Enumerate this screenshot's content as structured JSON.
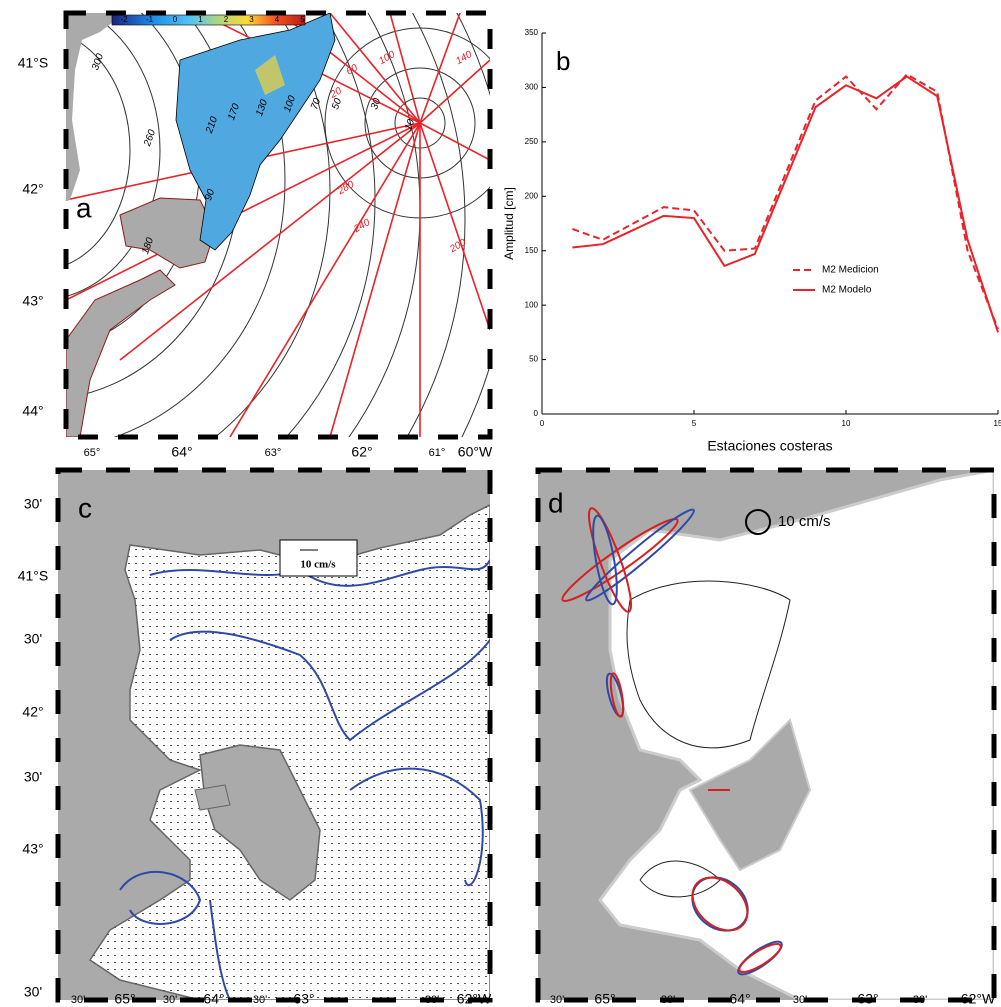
{
  "chart_data": {
    "type": "line",
    "panel_label": "b",
    "x_label": "Estaciones costeras",
    "y_label": "Amplitud [cm]",
    "x": [
      1,
      2,
      4,
      5,
      6,
      7,
      9,
      10,
      11,
      12,
      13,
      14,
      15
    ],
    "series": [
      {
        "name": "M2 Medicion",
        "color": "#e8232a",
        "dash": "dashed",
        "values": [
          170,
          160,
          190,
          187,
          150,
          152,
          288,
          310,
          280,
          312,
          296,
          150,
          78
        ]
      },
      {
        "name": "M2 Modelo",
        "color": "#e8232a",
        "dash": "solid",
        "values": [
          153,
          156,
          182,
          180,
          136,
          147,
          282,
          302,
          290,
          310,
          292,
          160,
          75
        ]
      }
    ],
    "xlim": [
      0,
      15
    ],
    "ylim": [
      0,
      350
    ],
    "xticks": [
      0,
      5,
      10,
      15
    ],
    "yticks": [
      0,
      50,
      100,
      150,
      200,
      250,
      300,
      350
    ],
    "legend": "center right"
  },
  "maps": [
    {
      "panel_label": "a",
      "lat_labels": [
        "41°S",
        "42°",
        "43°",
        "44°"
      ],
      "lon_labels": [
        "65°",
        "64°",
        "63°",
        "62°",
        "61°",
        "60°W"
      ],
      "colorbar_ticks": [
        -2,
        -1,
        0,
        1,
        2,
        3,
        4,
        5
      ],
      "contour_labels_black": [
        "300",
        "260",
        "210",
        "170",
        "130",
        "100",
        "70",
        "50",
        "30",
        "10",
        "180",
        "90"
      ],
      "contour_labels_red": [
        "100",
        "140",
        "60",
        "20",
        "280",
        "240",
        "200"
      ]
    },
    {
      "panel_label": "c",
      "lat_labels": [
        "30'",
        "41°S",
        "30'",
        "42°",
        "30'",
        "43°",
        "30'"
      ],
      "lon_labels": [
        "30'",
        "65°",
        "30'",
        "64°",
        "30'",
        "63°",
        "30'",
        "62°W"
      ],
      "scale_label": "10 cm/s"
    },
    {
      "panel_label": "d",
      "lon_labels": [
        "30'",
        "65°",
        "30'",
        "64°",
        "30'",
        "63°",
        "30'",
        "62°W"
      ],
      "scale_label": "10 cm/s"
    }
  ]
}
